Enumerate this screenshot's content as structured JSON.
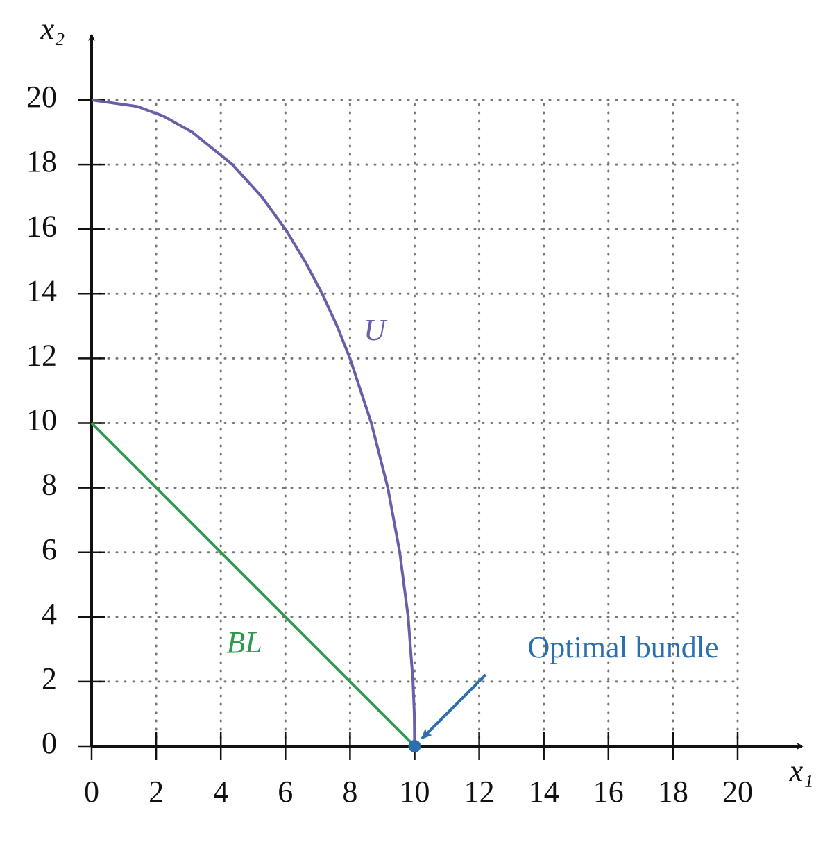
{
  "chart_data": {
    "type": "line",
    "xlabel": "x₁",
    "ylabel": "x₂",
    "xlim": [
      0,
      22
    ],
    "ylim": [
      0,
      22
    ],
    "xticks": [
      0,
      2,
      4,
      6,
      8,
      10,
      12,
      14,
      16,
      18,
      20
    ],
    "yticks": [
      0,
      2,
      4,
      6,
      8,
      10,
      12,
      14,
      16,
      18,
      20
    ],
    "grid": true,
    "series": [
      {
        "name": "U",
        "color": "#6a5ea8",
        "x": [
          0,
          1.41,
          2.22,
          3.12,
          4.36,
          5.27,
          6,
          6.61,
          7.14,
          7.6,
          8,
          8.66,
          9.17,
          9.54,
          9.8,
          9.95,
          9.99,
          10
        ],
        "values": [
          20,
          19.8,
          19.5,
          19,
          18,
          17,
          16,
          15,
          14,
          13,
          12,
          10,
          8,
          6,
          4,
          2,
          1,
          0
        ]
      },
      {
        "name": "BL",
        "color": "#2e9a50",
        "x": [
          0,
          10
        ],
        "values": [
          10,
          0
        ]
      }
    ],
    "points": [
      {
        "name": "Optimal bundle",
        "color": "#2b6fae",
        "x": 10,
        "y": 0
      }
    ]
  }
}
